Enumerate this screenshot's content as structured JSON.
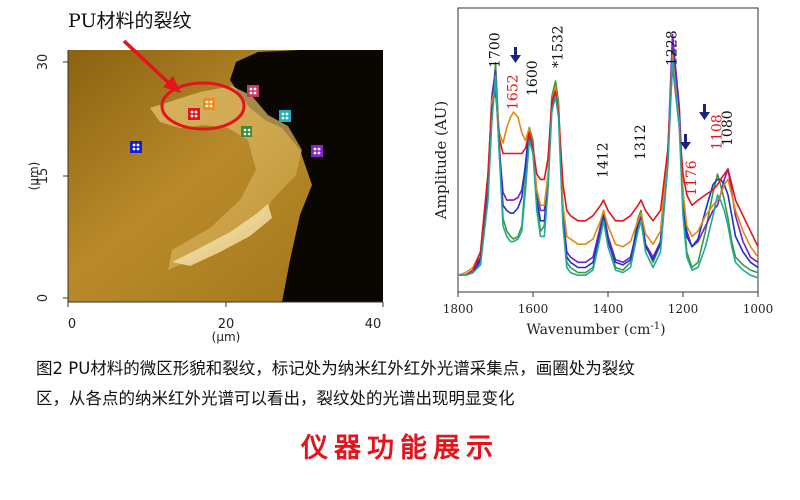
{
  "afm": {
    "annotation": "PU材料的裂纹",
    "x_ticks": [
      "0",
      "20",
      "40"
    ],
    "y_ticks": [
      "30",
      "15",
      "0"
    ],
    "x_unit": "(μm)",
    "y_unit": "(μm)"
  },
  "chart_data": {
    "type": "line",
    "xlabel": "Wavenumber (cm",
    "xlabel_sup": "-1",
    "xlabel_tail": ")",
    "ylabel": "Amplitude (AU)",
    "xlim": [
      1800,
      1000
    ],
    "x_ticks": [
      "1800",
      "1600",
      "1400",
      "1200",
      "1000"
    ],
    "peak_labels": [
      {
        "text": "1700",
        "color": "#111111",
        "x": 1700
      },
      {
        "text": "1652",
        "color": "#e3141b",
        "x": 1652
      },
      {
        "text": "1600",
        "color": "#111111",
        "x": 1600
      },
      {
        "text": "*1532",
        "color": "#111111",
        "x": 1532
      },
      {
        "text": "1412",
        "color": "#111111",
        "x": 1412
      },
      {
        "text": "1312",
        "color": "#111111",
        "x": 1312
      },
      {
        "text": "1228",
        "color": "#111111",
        "x": 1228
      },
      {
        "text": "1176",
        "color": "#e3141b",
        "x": 1176
      },
      {
        "text": "1108",
        "color": "#e3141b",
        "x": 1108
      },
      {
        "text": "1080",
        "color": "#111111",
        "x": 1080
      }
    ],
    "x": [
      1800,
      1780,
      1760,
      1740,
      1720,
      1710,
      1700,
      1690,
      1680,
      1670,
      1660,
      1652,
      1640,
      1630,
      1620,
      1610,
      1600,
      1590,
      1580,
      1570,
      1560,
      1550,
      1540,
      1532,
      1520,
      1510,
      1500,
      1480,
      1460,
      1440,
      1420,
      1412,
      1400,
      1380,
      1360,
      1340,
      1320,
      1312,
      1300,
      1280,
      1260,
      1240,
      1228,
      1210,
      1200,
      1190,
      1176,
      1160,
      1140,
      1120,
      1108,
      1100,
      1090,
      1080,
      1070,
      1060,
      1040,
      1020,
      1000
    ],
    "series": [
      {
        "color": "#3a9b3a",
        "values": [
          3,
          3,
          4,
          8,
          35,
          65,
          85,
          55,
          25,
          20,
          18,
          17,
          18,
          22,
          40,
          60,
          55,
          30,
          20,
          22,
          40,
          72,
          78,
          70,
          25,
          8,
          6,
          4,
          4,
          6,
          22,
          28,
          18,
          6,
          5,
          8,
          25,
          28,
          15,
          8,
          15,
          50,
          92,
          65,
          30,
          12,
          6,
          8,
          20,
          35,
          42,
          38,
          32,
          25,
          16,
          10,
          7,
          5,
          4
        ]
      },
      {
        "color": "#7a1fc9",
        "values": [
          3,
          3,
          5,
          10,
          40,
          72,
          82,
          52,
          35,
          32,
          32,
          32,
          33,
          36,
          45,
          58,
          50,
          35,
          28,
          28,
          40,
          68,
          74,
          66,
          26,
          12,
          10,
          8,
          8,
          10,
          22,
          27,
          18,
          9,
          8,
          10,
          22,
          26,
          15,
          10,
          16,
          52,
          96,
          68,
          35,
          20,
          14,
          16,
          22,
          28,
          30,
          34,
          40,
          44,
          35,
          26,
          16,
          10,
          8
        ]
      },
      {
        "color": "#1a34c8",
        "values": [
          3,
          3,
          4,
          9,
          38,
          70,
          80,
          50,
          30,
          28,
          27,
          27,
          29,
          33,
          46,
          60,
          52,
          32,
          24,
          24,
          38,
          70,
          76,
          68,
          24,
          10,
          8,
          6,
          6,
          8,
          20,
          26,
          16,
          8,
          7,
          9,
          23,
          27,
          14,
          9,
          15,
          50,
          90,
          64,
          32,
          18,
          14,
          17,
          28,
          38,
          40,
          40,
          38,
          34,
          26,
          18,
          12,
          8,
          6
        ]
      },
      {
        "color": "#e08a10",
        "values": [
          3,
          4,
          6,
          12,
          42,
          70,
          76,
          58,
          54,
          60,
          64,
          66,
          64,
          58,
          55,
          60,
          52,
          36,
          30,
          30,
          42,
          70,
          76,
          68,
          30,
          18,
          17,
          15,
          15,
          17,
          24,
          28,
          22,
          15,
          14,
          16,
          24,
          27,
          19,
          15,
          20,
          52,
          88,
          62,
          35,
          22,
          18,
          20,
          26,
          30,
          32,
          34,
          38,
          40,
          34,
          28,
          20,
          14,
          10
        ]
      },
      {
        "color": "#e3141b",
        "values": [
          3,
          3,
          5,
          12,
          42,
          68,
          74,
          56,
          50,
          50,
          50,
          50,
          50,
          50,
          52,
          58,
          52,
          42,
          40,
          40,
          48,
          70,
          74,
          66,
          38,
          28,
          26,
          24,
          24,
          26,
          30,
          32,
          28,
          24,
          24,
          26,
          30,
          32,
          28,
          24,
          28,
          52,
          84,
          60,
          42,
          34,
          30,
          32,
          34,
          36,
          38,
          40,
          42,
          44,
          38,
          32,
          26,
          20,
          14
        ]
      },
      {
        "color": "#22a8a0",
        "values": [
          3,
          3,
          4,
          7,
          32,
          62,
          80,
          50,
          22,
          18,
          16,
          16,
          17,
          20,
          36,
          55,
          50,
          28,
          18,
          18,
          36,
          66,
          72,
          64,
          22,
          6,
          4,
          3,
          3,
          5,
          18,
          24,
          14,
          5,
          4,
          6,
          20,
          24,
          12,
          6,
          12,
          46,
          86,
          60,
          26,
          10,
          5,
          6,
          14,
          26,
          34,
          32,
          28,
          22,
          14,
          8,
          5,
          3,
          2
        ]
      }
    ]
  },
  "caption": {
    "line1": "图2    PU材料的微区形貌和裂纹，标记处为纳米红外红外光谱采集点，画圈处为裂纹",
    "line2": "区，从各点的纳米红外光谱可以看出，裂纹处的光谱出现明显变化"
  },
  "banner": "仪器功能展示"
}
